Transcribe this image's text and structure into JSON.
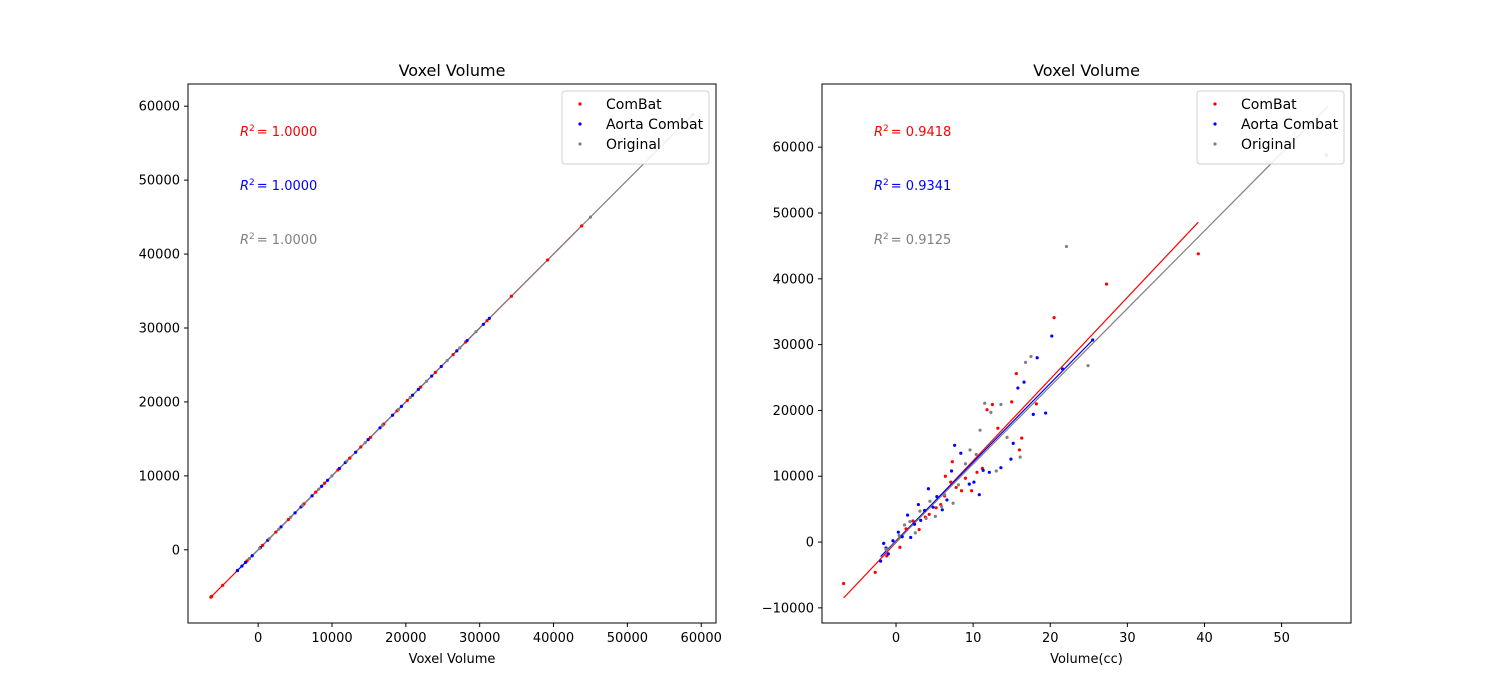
{
  "colors": {
    "combat": "#ff0000",
    "aorta": "#0000ff",
    "original": "#808080"
  },
  "chart_data": [
    {
      "type": "scatter",
      "title": "Voxel Volume",
      "xlabel": "Voxel Volume",
      "ylabel": "",
      "xlim": [
        -9500,
        62000
      ],
      "ylim": [
        -9900,
        63000
      ],
      "xticks": [
        0,
        10000,
        20000,
        30000,
        40000,
        50000,
        60000
      ],
      "yticks": [
        0,
        10000,
        20000,
        30000,
        40000,
        50000,
        60000
      ],
      "legend_position": "top-right",
      "annotations": [
        {
          "label": "R²",
          "value": "= 1.0000",
          "color": "#ff0000"
        },
        {
          "label": "R²",
          "value": "= 1.0000",
          "color": "#0000ff"
        },
        {
          "label": "R²",
          "value": "= 1.0000",
          "color": "#808080"
        }
      ],
      "series": [
        {
          "name": "ComBat",
          "color": "#ff0000",
          "fit": [
            [
              -6500,
              -6500
            ],
            [
              44000,
              44000
            ]
          ],
          "x": [
            -6400,
            -6300,
            -4800,
            -2800,
            -1500,
            600,
            2400,
            4100,
            6200,
            7800,
            9000,
            10800,
            12400,
            13900,
            15200,
            17000,
            18800,
            20200,
            22000,
            24000,
            26400,
            28100,
            31000,
            34300,
            39200,
            43800
          ],
          "y": [
            -6400,
            -6300,
            -4800,
            -2800,
            -1500,
            600,
            2400,
            4100,
            6200,
            7800,
            9000,
            10800,
            12400,
            13900,
            15200,
            17000,
            18800,
            20200,
            22000,
            24000,
            26400,
            28100,
            31000,
            34300,
            39200,
            43800
          ]
        },
        {
          "name": "Aorta Combat",
          "color": "#0000ff",
          "fit": [
            [
              -3000,
              -3000
            ],
            [
              31500,
              31500
            ]
          ],
          "x": [
            -2800,
            -2200,
            -1700,
            -1200,
            -800,
            300,
            1300,
            3100,
            5000,
            5800,
            7300,
            8600,
            9400,
            11000,
            11800,
            13200,
            14900,
            16500,
            18200,
            19400,
            20900,
            21700,
            23500,
            24800,
            26900,
            28300,
            30500,
            31300
          ],
          "y": [
            -2800,
            -2200,
            -1700,
            -1200,
            -800,
            300,
            1300,
            3100,
            5000,
            5800,
            7300,
            8600,
            9400,
            11000,
            11800,
            13200,
            14900,
            16500,
            18200,
            19400,
            20900,
            21700,
            23500,
            24800,
            26900,
            28300,
            30500,
            31300
          ]
        },
        {
          "name": "Original",
          "color": "#808080",
          "fit": [
            [
              -1500,
              -1500
            ],
            [
              59000,
              59000
            ]
          ],
          "x": [
            -1200,
            200,
            1500,
            2800,
            4400,
            6000,
            8200,
            10000,
            12000,
            14500,
            16800,
            19000,
            20600,
            22800,
            25600,
            27300,
            29500,
            45000,
            58900
          ],
          "y": [
            -1200,
            200,
            1500,
            2800,
            4400,
            6000,
            8200,
            10000,
            12000,
            14500,
            16800,
            19000,
            20600,
            22800,
            25600,
            27300,
            29500,
            45000,
            58900
          ]
        }
      ]
    },
    {
      "type": "scatter",
      "title": "Voxel Volume",
      "xlabel": "Volume(cc)",
      "ylabel": "",
      "xlim": [
        -9.6,
        59.0
      ],
      "ylim": [
        -12300,
        69600
      ],
      "xticks": [
        0,
        10,
        20,
        30,
        40,
        50
      ],
      "yticks": [
        -10000,
        0,
        10000,
        20000,
        30000,
        40000,
        50000,
        60000
      ],
      "legend_position": "top-right",
      "annotations": [
        {
          "label": "R²",
          "value": "= 0.9418",
          "color": "#ff0000"
        },
        {
          "label": "R²",
          "value": "= 0.9341",
          "color": "#0000ff"
        },
        {
          "label": "R²",
          "value": "= 0.9125",
          "color": "#808080"
        }
      ],
      "series": [
        {
          "name": "ComBat",
          "color": "#ff0000",
          "fit": [
            [
              -6.8,
              -8500
            ],
            [
              39.2,
              48600
            ]
          ],
          "x": [
            -6.8,
            -2.7,
            -1.2,
            0.5,
            1.3,
            2.2,
            3.0,
            3.8,
            4.3,
            5.2,
            5.8,
            6.3,
            6.4,
            7.1,
            7.3,
            7.8,
            8.5,
            9.0,
            9.8,
            10.5,
            11.2,
            11.8,
            12.5,
            13.2,
            15.0,
            15.6,
            16.0,
            16.3,
            18.2,
            20.5,
            27.3,
            39.2
          ],
          "y": [
            -6300,
            -4600,
            -2100,
            -800,
            2000,
            3200,
            1900,
            3800,
            4200,
            5200,
            5700,
            7000,
            10000,
            9100,
            12200,
            8300,
            7800,
            9700,
            7800,
            10600,
            11200,
            20100,
            20900,
            17300,
            21300,
            25600,
            14000,
            15800,
            21000,
            34100,
            39200,
            43800
          ]
        },
        {
          "name": "Aorta Combat",
          "color": "#0000ff",
          "fit": [
            [
              -2.0,
              -2200
            ],
            [
              25.6,
              30800
            ]
          ],
          "x": [
            -2.0,
            -1.6,
            -1.3,
            -1.0,
            -0.4,
            0.3,
            0.8,
            1.5,
            1.9,
            2.4,
            2.9,
            3.2,
            3.7,
            4.2,
            4.8,
            5.3,
            6.0,
            6.6,
            7.2,
            7.6,
            8.4,
            9.5,
            10.1,
            10.8,
            11.3,
            12.1,
            13.6,
            14.9,
            15.2,
            15.8,
            16.6,
            17.8,
            18.3,
            19.4,
            20.2,
            21.6,
            25.5
          ],
          "y": [
            -2900,
            -200,
            -900,
            -1800,
            200,
            1500,
            800,
            4100,
            700,
            2700,
            5700,
            3300,
            4800,
            8100,
            5300,
            6900,
            4900,
            6400,
            10800,
            14700,
            13500,
            8800,
            9100,
            7200,
            10900,
            10600,
            11300,
            12600,
            15000,
            23400,
            24300,
            19400,
            28000,
            19600,
            31300,
            26300,
            30700
          ]
        },
        {
          "name": "Original",
          "color": "#808080",
          "fit": [
            [
              -1.3,
              -1500
            ],
            [
              56.0,
              66200
            ]
          ],
          "x": [
            -1.3,
            0.4,
            1.1,
            1.8,
            2.5,
            3.1,
            3.9,
            4.4,
            5.1,
            5.9,
            6.3,
            7.4,
            8.1,
            9.0,
            9.6,
            10.4,
            10.9,
            11.5,
            12.3,
            13.0,
            13.6,
            14.4,
            16.1,
            16.8,
            17.5,
            22.1,
            24.9,
            55.8
          ],
          "y": [
            -1100,
            1000,
            2600,
            3100,
            1400,
            4700,
            3600,
            6200,
            3900,
            5400,
            7200,
            5900,
            8700,
            11900,
            14000,
            13300,
            17000,
            21100,
            19700,
            10800,
            20900,
            15900,
            12900,
            27300,
            28200,
            44900,
            26800,
            58800
          ]
        }
      ]
    }
  ]
}
